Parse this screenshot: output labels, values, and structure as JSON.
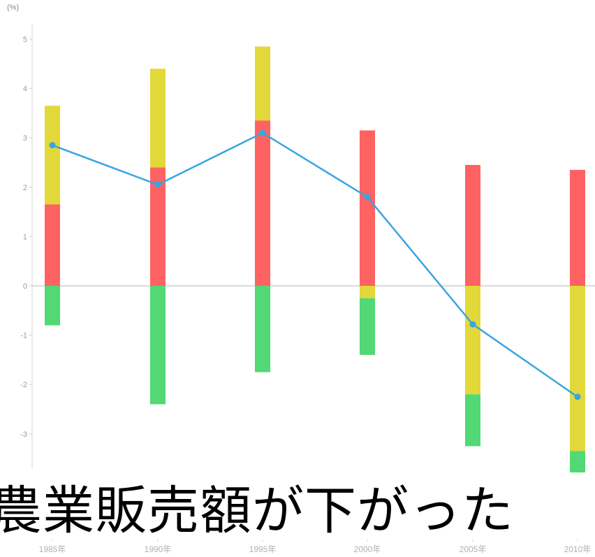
{
  "chart_data": {
    "type": "bar",
    "unit_label": "(%)",
    "categories": [
      "1985年",
      "1990年",
      "1995年",
      "2000年",
      "2005年",
      "2010年"
    ],
    "series": [
      {
        "color": "#fe6262",
        "values": [
          1.65,
          2.4,
          3.35,
          3.15,
          2.45,
          2.35
        ]
      },
      {
        "color": "#e2d83a",
        "values": [
          2.0,
          2.0,
          1.5,
          -0.25,
          -2.2,
          -3.35
        ]
      },
      {
        "color": "#52d874",
        "values": [
          -0.8,
          -2.4,
          -1.75,
          -1.15,
          -1.05,
          -1.25
        ]
      }
    ],
    "line": {
      "color": "#3aa5e0",
      "values": [
        2.85,
        2.05,
        3.1,
        1.8,
        -0.78,
        -2.25
      ]
    },
    "yticks": [
      -3,
      -2,
      -1,
      0,
      1,
      2,
      3,
      4,
      5
    ],
    "ylim": [
      -3.5,
      5.4
    ]
  },
  "caption": "農業販売額が下がった"
}
